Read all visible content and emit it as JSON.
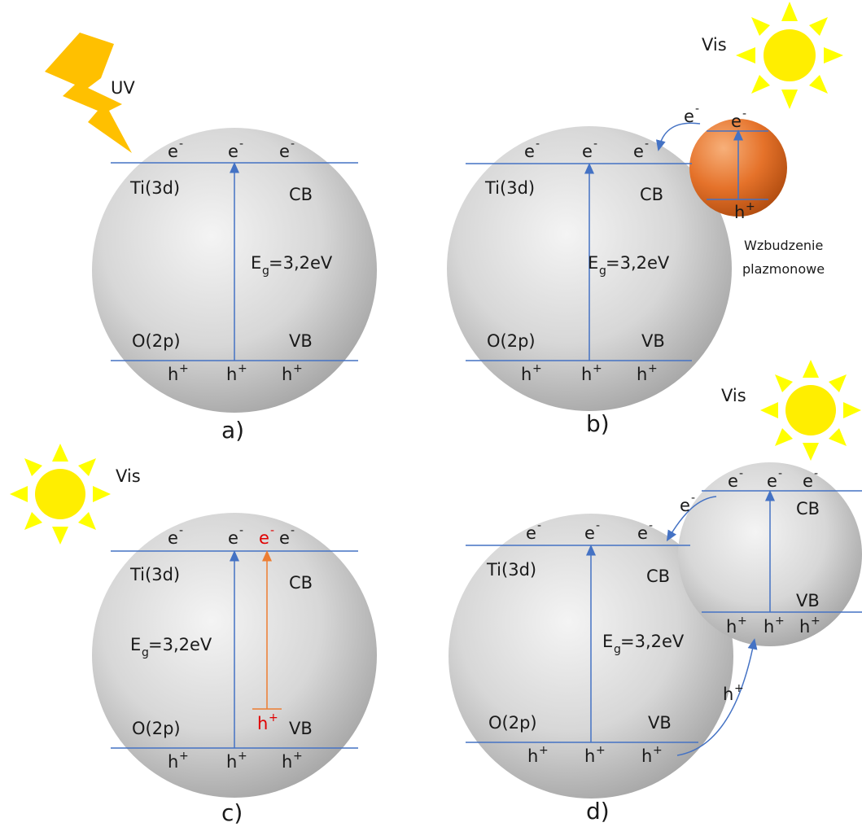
{
  "colors": {
    "band_line": "#4472c4",
    "arrow_blue": "#4472c4",
    "arrow_orange": "#ed7d31",
    "sun": "#ffff00",
    "sun_center": "#ffee00",
    "lightning": "#ffc000",
    "nanoparticle": "#e06a1c",
    "red_label": "#e00000"
  },
  "labels": {
    "e": "e",
    "minus": "-",
    "h": "h",
    "plus": "+",
    "ti3d": "Ti(3d)",
    "o2p": "O(2p)",
    "cb": "CB",
    "vb": "VB",
    "eg_e": "E",
    "eg_sub": "g",
    "eg_val": "=3,2eV"
  },
  "panels": {
    "a": {
      "label": "a)",
      "source": "UV",
      "source_icon": "lightning-icon"
    },
    "b": {
      "label": "b)",
      "source": "Vis",
      "source_icon": "sun-icon",
      "note_line1": "Wzbudzenie",
      "note_line2": "plazmonowe"
    },
    "c": {
      "label": "c)",
      "source": "Vis",
      "source_icon": "sun-icon"
    },
    "d": {
      "label": "d)",
      "source": "Vis",
      "source_icon": "sun-icon"
    }
  }
}
